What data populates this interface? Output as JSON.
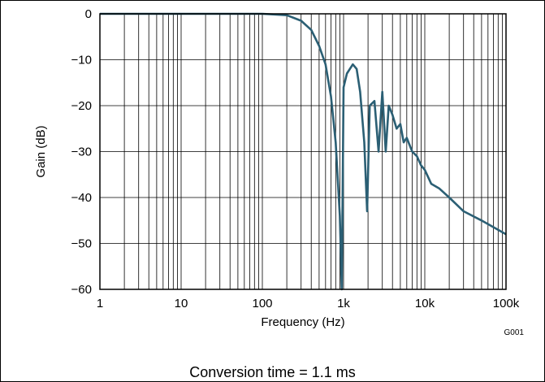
{
  "chart_data": {
    "type": "line",
    "title": "",
    "xlabel": "Frequency (Hz)",
    "ylabel": "Gain (dB)",
    "x_scale": "log",
    "xlim": [
      1,
      100000
    ],
    "ylim": [
      -60,
      0
    ],
    "x_ticks": [
      1,
      10,
      100,
      1000,
      10000,
      100000
    ],
    "x_tick_labels": [
      "1",
      "10",
      "100",
      "1k",
      "10k",
      "100k"
    ],
    "y_ticks": [
      0,
      -10,
      -20,
      -30,
      -40,
      -50,
      -60
    ],
    "y_tick_labels": [
      "0",
      "−10",
      "−20",
      "−30",
      "−40",
      "−50",
      "−60"
    ],
    "grid": true,
    "series_color": "#2b5f74",
    "series": [
      {
        "name": "",
        "description_points": {
          "x": [
            1,
            100,
            200,
            300,
            400,
            500,
            600,
            700,
            800,
            900,
            950,
            1000,
            1100,
            1300,
            1450,
            1600,
            1800,
            1950,
            2100,
            2400,
            2700,
            3000,
            3300,
            3600,
            4000,
            4500,
            5000,
            5500,
            6000,
            7000,
            8000,
            9000,
            10000,
            12000,
            15000,
            20000,
            30000,
            50000,
            100000
          ],
          "y": [
            0,
            0,
            -0.3,
            -1.5,
            -3.5,
            -7,
            -11,
            -18,
            -28,
            -44,
            -60,
            -16,
            -13,
            -11,
            -12,
            -17,
            -28,
            -43,
            -20,
            -19,
            -30,
            -17,
            -30,
            -20,
            -22,
            -25,
            -24,
            -28,
            -27,
            -30,
            -31,
            -33,
            -34,
            -37,
            -38,
            -40,
            -43,
            -45,
            -48
          ]
        }
      }
    ],
    "figure_code": "G001",
    "caption": "Conversion time = 1.1 ms"
  }
}
